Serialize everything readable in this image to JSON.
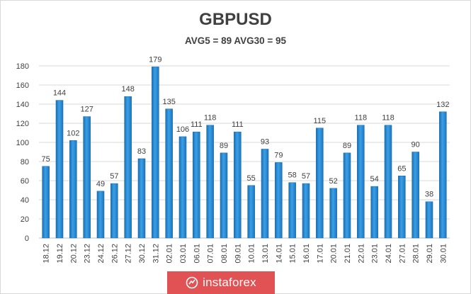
{
  "chart_data": {
    "type": "bar",
    "title": "GBPUSD",
    "subtitle": "AVG5 = 89 AVG30 = 95",
    "categories": [
      "18.12",
      "19.12",
      "20.12",
      "23.12",
      "24.12",
      "26.12",
      "27.12",
      "30.12",
      "31.12",
      "02.01",
      "03.01",
      "06.01",
      "07.01",
      "08.01",
      "09.01",
      "10.01",
      "13.01",
      "14.01",
      "15.01",
      "16.01",
      "17.01",
      "20.01",
      "21.01",
      "22.01",
      "23.01",
      "24.01",
      "27.01",
      "28.01",
      "29.01",
      "30.01"
    ],
    "values": [
      75,
      144,
      102,
      127,
      49,
      57,
      148,
      83,
      179,
      135,
      106,
      111,
      118,
      89,
      111,
      55,
      93,
      79,
      58,
      57,
      115,
      52,
      89,
      118,
      54,
      118,
      65,
      90,
      38,
      132
    ],
    "ylim": [
      0,
      180
    ],
    "yticks": [
      0,
      20,
      40,
      60,
      80,
      100,
      120,
      140,
      160,
      180
    ],
    "grid": true,
    "bar_color": "#2e8fd6"
  },
  "watermark": {
    "text": "instaforex"
  }
}
